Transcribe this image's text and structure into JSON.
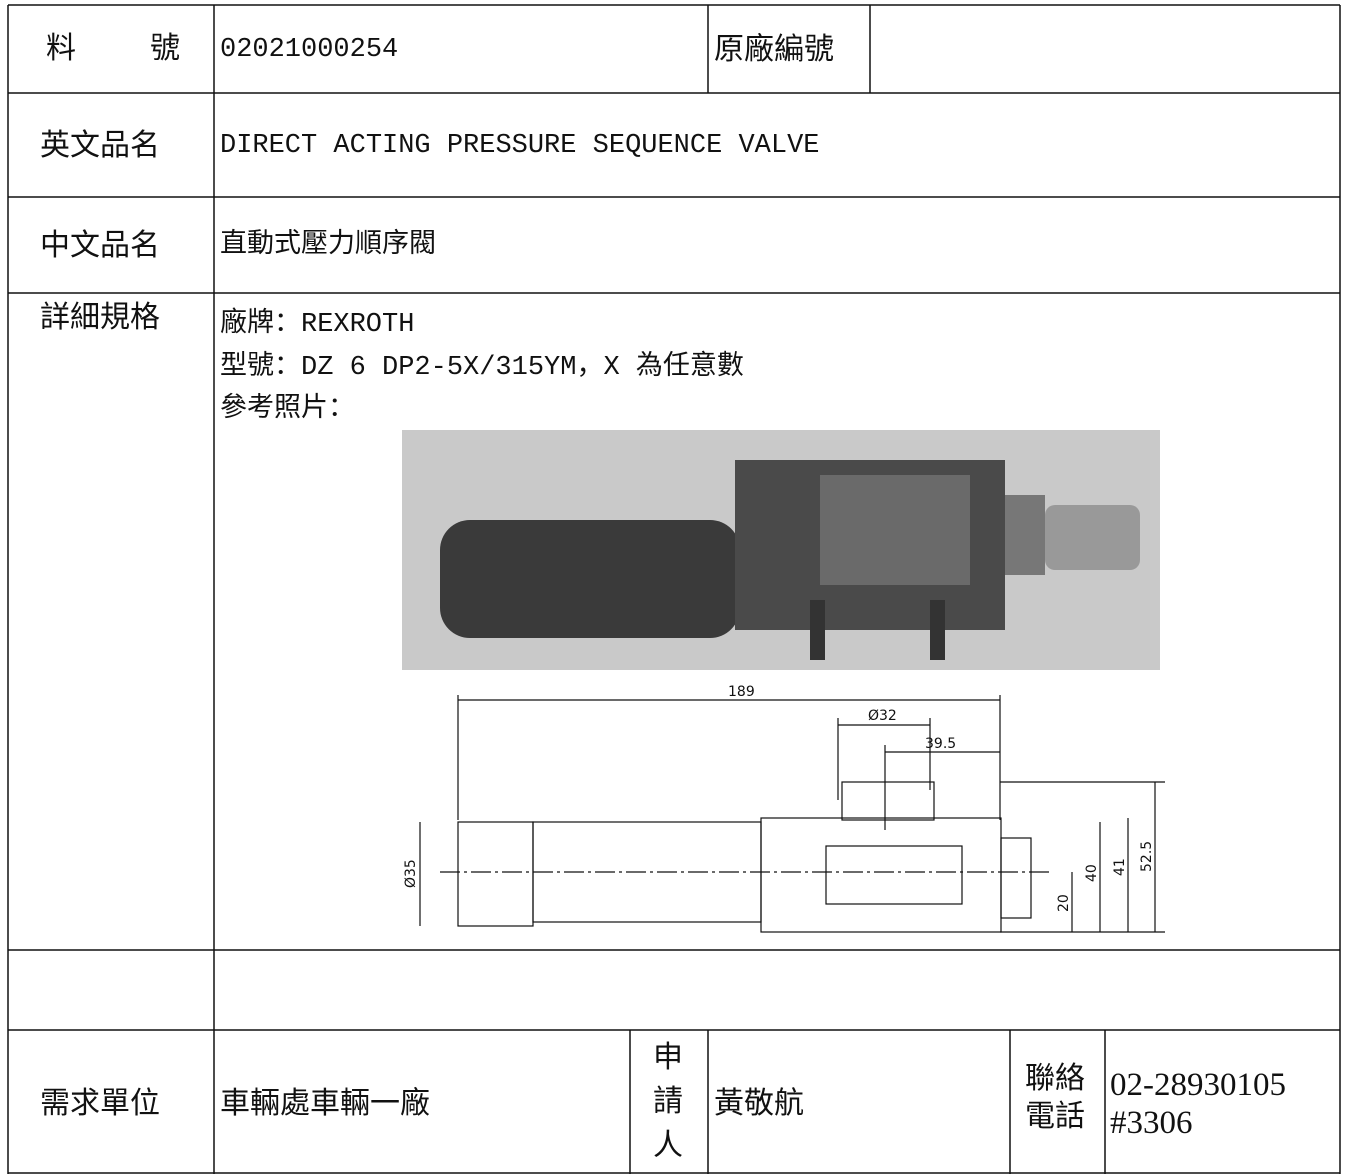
{
  "part_no": {
    "label": "料　號",
    "value": "02021000254"
  },
  "original_no": {
    "label": "原廠編號"
  },
  "english_name": {
    "label": "英文品名",
    "value": "DIRECT ACTING PRESSURE SEQUENCE VALVE"
  },
  "chinese_name": {
    "label": "中文品名",
    "value": "直動式壓力順序閥"
  },
  "details": {
    "label": "詳細規格",
    "lines": [
      "廠牌：REXROTH",
      "型號：DZ 6 DP2-5X/315YM，X 為任意數",
      "參考照片："
    ]
  },
  "drawing": {
    "dimensions": [
      "189",
      "Ø32",
      "39.5",
      "Ø35",
      "20",
      "40",
      "41",
      "52.5"
    ]
  },
  "footer": {
    "unit_label": "需求單位",
    "unit": "車輛處車輛一廠",
    "applicant_label": "申請人",
    "applicant": "黃敬航",
    "phone_label": "聯絡電話",
    "phone": "02-28930105 #3306"
  }
}
